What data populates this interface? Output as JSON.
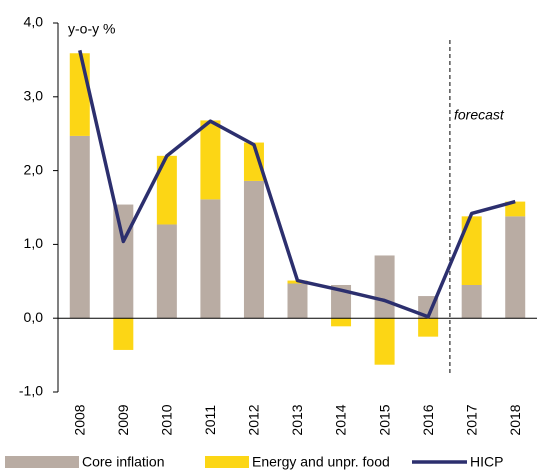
{
  "chart_data": {
    "type": "bar",
    "stacked": true,
    "annotations": [
      "y-o-y %",
      "forecast"
    ],
    "categories": [
      "2008",
      "2009",
      "2010",
      "2011",
      "2012",
      "2013",
      "2014",
      "2015",
      "2016",
      "2017",
      "2018"
    ],
    "series": [
      {
        "name": "Core inflation",
        "type": "bar",
        "color": "#b9aca3",
        "values": [
          2.47,
          1.54,
          1.27,
          1.61,
          1.86,
          0.47,
          0.45,
          0.85,
          0.3,
          0.45,
          1.38
        ]
      },
      {
        "name": "Energy and unpr. food",
        "type": "bar",
        "color": "#fcd615",
        "values": [
          1.12,
          -0.43,
          0.93,
          1.07,
          0.52,
          0.04,
          -0.11,
          -0.63,
          -0.25,
          0.93,
          0.2
        ]
      },
      {
        "name": "HICP",
        "type": "line",
        "color": "#2c2f6e",
        "values": [
          3.63,
          1.04,
          2.2,
          2.67,
          2.35,
          0.51,
          0.38,
          0.24,
          0.02,
          1.42,
          1.58
        ]
      }
    ],
    "ylim": [
      -1,
      4
    ],
    "yticks": [
      {
        "value": -1,
        "label": "-1,0"
      },
      {
        "value": 0,
        "label": "0,0"
      },
      {
        "value": 1,
        "label": "1,0"
      },
      {
        "value": 2,
        "label": "2,0"
      },
      {
        "value": 3,
        "label": "3,0"
      },
      {
        "value": 4,
        "label": "4,0"
      }
    ]
  }
}
